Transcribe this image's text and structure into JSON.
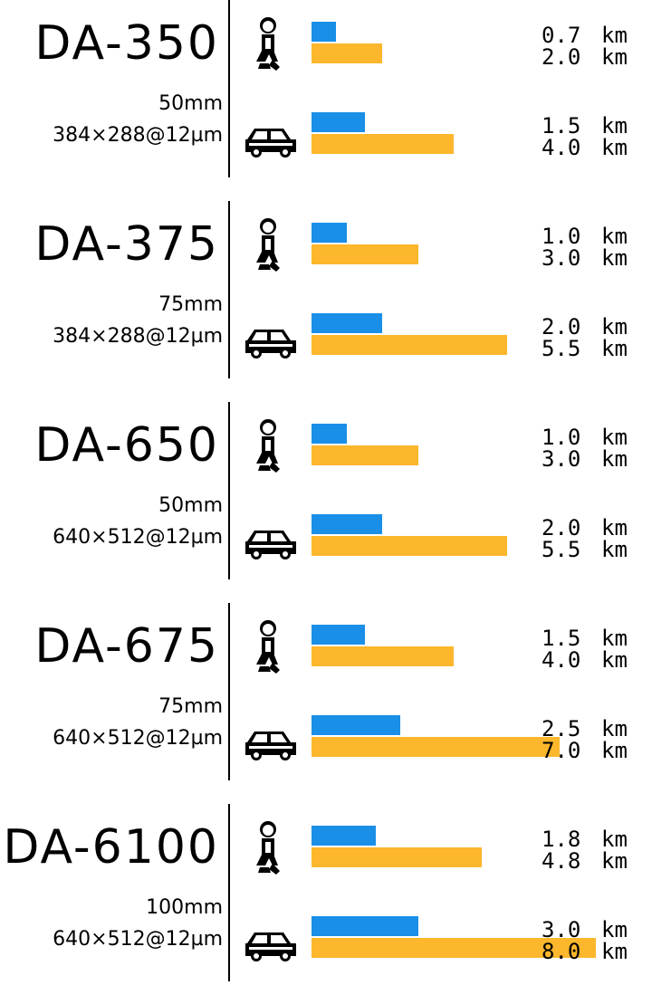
{
  "chart_data": {
    "type": "bar",
    "title": "",
    "unit": "km",
    "xlim": [
      0,
      8.2
    ],
    "legend": "none",
    "colors": {
      "detection": "#1a8fe8",
      "recognition": "#fcb72c"
    },
    "cameras": [
      {
        "model": "DA-350",
        "focal": "50mm",
        "sensor": "384×288@12µm",
        "rows": [
          {
            "target": "person",
            "values": [
              0.7,
              2.0
            ],
            "labels": [
              "0.7",
              "2.0"
            ]
          },
          {
            "target": "car",
            "values": [
              1.5,
              4.0
            ],
            "labels": [
              "1.5",
              "4.0"
            ]
          }
        ]
      },
      {
        "model": "DA-375",
        "focal": "75mm",
        "sensor": "384×288@12µm",
        "rows": [
          {
            "target": "person",
            "values": [
              1.0,
              3.0
            ],
            "labels": [
              "1.0",
              "3.0"
            ]
          },
          {
            "target": "car",
            "values": [
              2.0,
              5.5
            ],
            "labels": [
              "2.0",
              "5.5"
            ]
          }
        ]
      },
      {
        "model": "DA-650",
        "focal": "50mm",
        "sensor": "640×512@12µm",
        "rows": [
          {
            "target": "person",
            "values": [
              1.0,
              3.0
            ],
            "labels": [
              "1.0",
              "3.0"
            ]
          },
          {
            "target": "car",
            "values": [
              2.0,
              5.5
            ],
            "labels": [
              "2.0",
              "5.5"
            ]
          }
        ]
      },
      {
        "model": "DA-675",
        "focal": "75mm",
        "sensor": "640×512@12µm",
        "rows": [
          {
            "target": "person",
            "values": [
              1.5,
              4.0
            ],
            "labels": [
              "1.5",
              "4.0"
            ]
          },
          {
            "target": "car",
            "values": [
              2.5,
              7.0
            ],
            "labels": [
              "2.5",
              "7.0"
            ]
          }
        ]
      },
      {
        "model": "DA-6100",
        "focal": "100mm",
        "sensor": "640×512@12µm",
        "rows": [
          {
            "target": "person",
            "values": [
              1.8,
              4.8
            ],
            "labels": [
              "1.8",
              "4.8"
            ]
          },
          {
            "target": "car",
            "values": [
              3.0,
              8.0
            ],
            "labels": [
              "3.0",
              "8.0"
            ]
          }
        ]
      }
    ]
  },
  "icons": {
    "person": "person-walking-icon",
    "car": "car-icon"
  }
}
